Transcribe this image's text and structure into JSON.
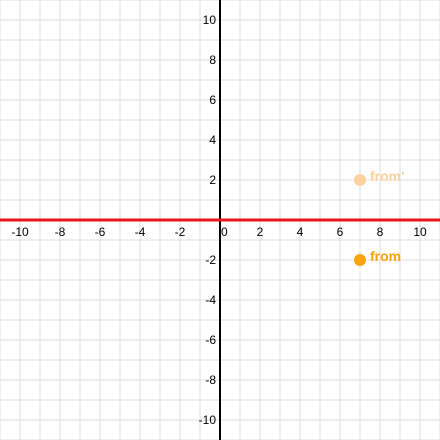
{
  "chart_data": {
    "type": "scatter",
    "xlim": [
      -11,
      11
    ],
    "ylim": [
      -11,
      11
    ],
    "grid": true,
    "minor_grid_step": 1,
    "x_ticks": [
      -10,
      -8,
      -6,
      -4,
      -2,
      0,
      2,
      4,
      6,
      8,
      10
    ],
    "y_ticks": [
      -10,
      -8,
      -6,
      -4,
      -2,
      2,
      4,
      6,
      8,
      10
    ],
    "points": [
      {
        "label": "from'",
        "x": 7,
        "y": 2,
        "color": "#fdd19b"
      },
      {
        "label": "from",
        "x": 7,
        "y": -2,
        "color": "#f9a304"
      }
    ],
    "reflection_line": {
      "equation": "y = 0",
      "color": "#e8161b"
    }
  },
  "colors": {
    "grid": "#dcdcdc",
    "axes": "#000000"
  }
}
